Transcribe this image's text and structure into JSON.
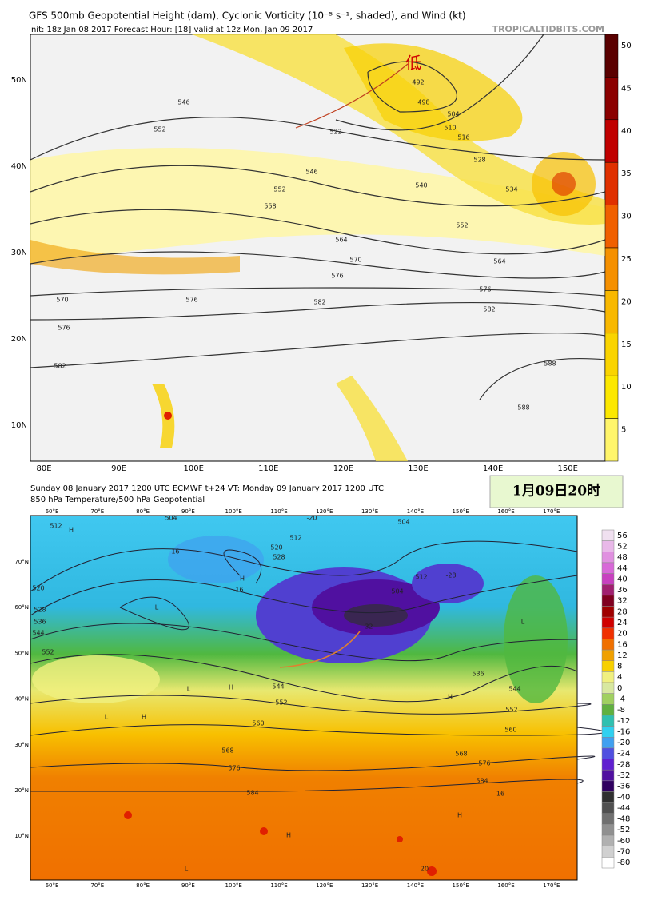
{
  "top_map": {
    "title": "GFS 500mb Geopotential Height (dam), Cyclonic Vorticity (10⁻⁵ s⁻¹, shaded), and Wind (kt)",
    "subtitle": "Init: 18z Jan 08 2017   Forecast Hour: [18]   valid at 12z Mon, Jan 09 2017",
    "source": "TROPICALTIDBITS.COM",
    "low_marker": "低",
    "lat_labels": [
      "50N",
      "40N",
      "30N",
      "20N",
      "10N"
    ],
    "lon_labels": [
      "80E",
      "90E",
      "100E",
      "110E",
      "120E",
      "130E",
      "140E",
      "150E"
    ],
    "colorbar": {
      "labels": [
        "50",
        "45",
        "40",
        "35",
        "30",
        "25",
        "20",
        "15",
        "10",
        "5"
      ],
      "colors": [
        "#5a0000",
        "#8b0000",
        "#c00000",
        "#e03000",
        "#f06000",
        "#f59000",
        "#f8b800",
        "#fad400",
        "#fce800",
        "#fff56a"
      ]
    },
    "contour_labels": [
      "546",
      "552",
      "552",
      "558",
      "564",
      "570",
      "576",
      "576",
      "582",
      "570",
      "576",
      "582",
      "588",
      "588",
      "492",
      "498",
      "504",
      "510",
      "516",
      "522",
      "528",
      "534",
      "540",
      "546",
      "552",
      "564",
      "576",
      "582"
    ]
  },
  "bottom_map": {
    "title": "Sunday 08 January 2017 1200 UTC  ECMWF  t+24  VT: Monday 09 January 2017 1200 UTC",
    "subtitle": "850 hPa Temperature/500 hPa Geopotential",
    "date_box": "1月09日20时",
    "lon_labels": [
      "60°E",
      "70°E",
      "80°E",
      "90°E",
      "100°E",
      "110°E",
      "120°E",
      "130°E",
      "140°E",
      "150°E",
      "160°E",
      "170°E"
    ],
    "lat_labels": [
      "70°N",
      "60°N",
      "50°N",
      "40°N",
      "30°N",
      "20°N",
      "10°N"
    ],
    "colorbar": {
      "labels": [
        "56",
        "52",
        "48",
        "44",
        "40",
        "36",
        "32",
        "28",
        "24",
        "20",
        "16",
        "12",
        "8",
        "4",
        "0",
        "-4",
        "-8",
        "-12",
        "-16",
        "-20",
        "-24",
        "-28",
        "-32",
        "-36",
        "-40",
        "-44",
        "-48",
        "-52",
        "-60",
        "-70",
        "-80"
      ],
      "colors": [
        "#f0e0f0",
        "#e8b8e8",
        "#e090e0",
        "#d868d8",
        "#c840c0",
        "#a02070",
        "#800020",
        "#a00000",
        "#d00000",
        "#f03000",
        "#f07000",
        "#f0a000",
        "#f8d000",
        "#f0f080",
        "#d8e8a0",
        "#a0d060",
        "#60b040",
        "#30c0b0",
        "#30d0f0",
        "#40a0f0",
        "#5050e0",
        "#6020d0",
        "#5010a0",
        "#300060",
        "#303030",
        "#505050",
        "#707070",
        "#909090",
        "#b0b0b0",
        "#d0d0d0",
        "#ffffff"
      ]
    },
    "contour_labels": [
      "512",
      "504",
      "504",
      "512",
      "520",
      "528",
      "512",
      "504",
      "520",
      "528",
      "536",
      "544",
      "552",
      "-16",
      "-16",
      "-20",
      "-28",
      "-32",
      "536",
      "544",
      "552",
      "560",
      "568",
      "576",
      "584",
      "584",
      "576",
      "568",
      "560",
      "552",
      "544",
      "16",
      "20",
      "H",
      "H",
      "H",
      "L",
      "L",
      "H",
      "L",
      "H",
      "L",
      "H",
      "H",
      "L"
    ]
  }
}
